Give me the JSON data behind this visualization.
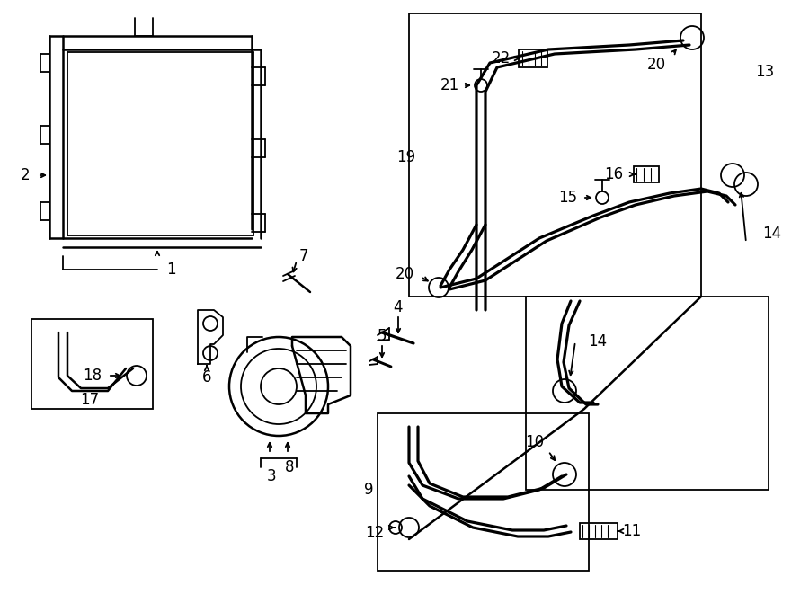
{
  "bg_color": "#ffffff",
  "line_color": "#000000",
  "lw": 1.3,
  "fig_w": 9.0,
  "fig_h": 6.61,
  "dpi": 100
}
